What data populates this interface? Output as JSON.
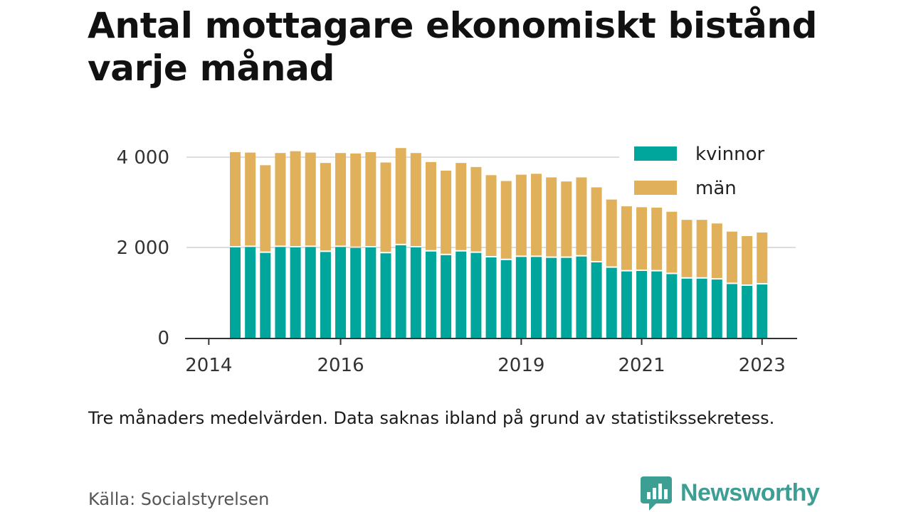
{
  "title": "Antal mottagare ekonomiskt bistånd varje månad",
  "note": "Tre månaders medelvärden. Data saknas ibland på grund av statistikssekretess.",
  "source": "Källa: Socialstyrelsen",
  "brand": {
    "name": "Newsworthy",
    "icon": "bar-chart-bubble-icon",
    "color": "#3d9e94"
  },
  "chart_data": {
    "type": "bar",
    "stacked": true,
    "title": "Antal mottagare ekonomiskt bistånd varje månad",
    "xlabel": "",
    "ylabel": "",
    "ylim": [
      0,
      4400
    ],
    "yticks": [
      0,
      2000,
      4000
    ],
    "ytick_labels": [
      "0",
      "2 000",
      "4 000"
    ],
    "xticks": [
      "2014",
      "2016",
      "2019",
      "2021",
      "2023"
    ],
    "grid": true,
    "legend_position": "top-right",
    "series": [
      {
        "name": "kvinnor",
        "color": "#00a69c",
        "values": [
          2000,
          2010,
          1880,
          2010,
          2000,
          2010,
          1900,
          2010,
          1990,
          2000,
          1870,
          2050,
          2000,
          1910,
          1830,
          1910,
          1880,
          1780,
          1720,
          1790,
          1790,
          1770,
          1770,
          1800,
          1670,
          1550,
          1470,
          1480,
          1470,
          1410,
          1310,
          1310,
          1290,
          1190,
          1150,
          1180
        ]
      },
      {
        "name": "män",
        "color": "#e0b05a",
        "values": [
          2080,
          2060,
          1910,
          2050,
          2100,
          2060,
          1940,
          2050,
          2060,
          2080,
          1980,
          2120,
          2060,
          1950,
          1840,
          1930,
          1870,
          1790,
          1720,
          1790,
          1810,
          1750,
          1660,
          1720,
          1630,
          1480,
          1410,
          1380,
          1380,
          1350,
          1270,
          1270,
          1210,
          1130,
          1070,
          1120
        ]
      }
    ]
  }
}
